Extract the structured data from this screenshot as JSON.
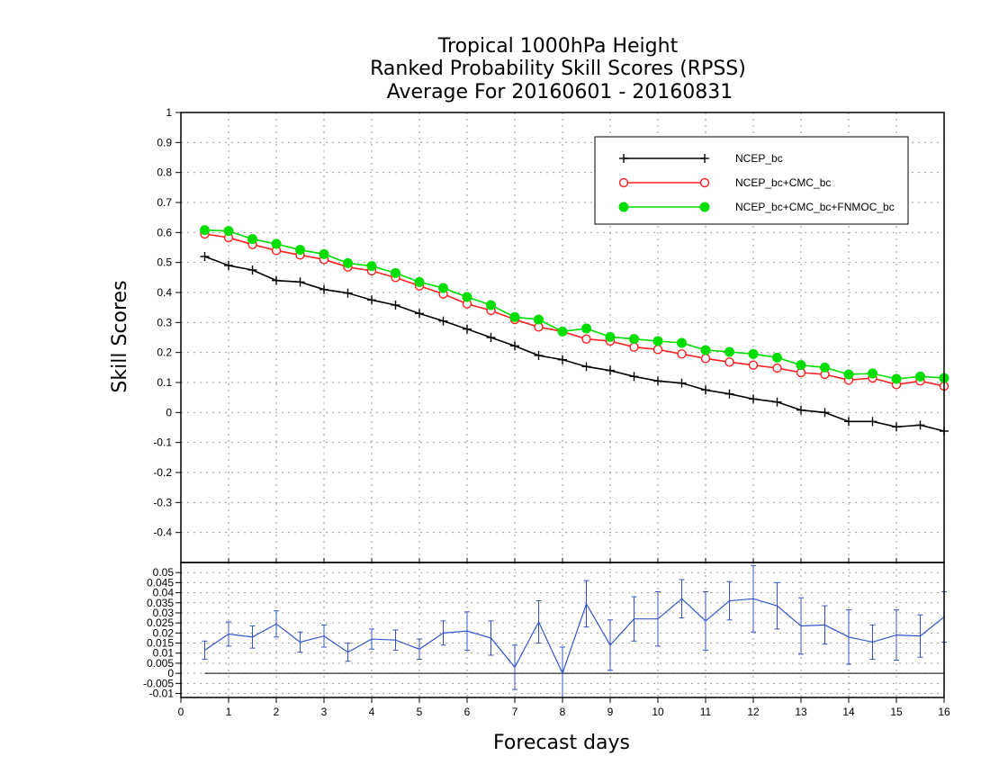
{
  "chart_data": [
    {
      "type": "line",
      "title": [
        "Tropical 1000hPa Height",
        "Ranked Probability Skill Scores (RPSS)",
        "Average For 20160601 - 20160831"
      ],
      "xlabel": "Forecast days",
      "ylabel": "Skill Scores",
      "xlim": [
        0,
        16
      ],
      "ylim": [
        -0.5,
        1
      ],
      "x_ticks": [
        "0",
        "1",
        "2",
        "3",
        "4",
        "5",
        "6",
        "7",
        "8",
        "9",
        "10",
        "11",
        "12",
        "13",
        "14",
        "15",
        "16"
      ],
      "y_ticks": [
        "1",
        "0.9",
        "0.8",
        "0.7",
        "0.6",
        "0.5",
        "0.4",
        "0.3",
        "0.2",
        "0.1",
        "0",
        "-0.1",
        "-0.2",
        "-0.3",
        "-0.4"
      ],
      "grid": true,
      "legend_position": "top-right",
      "x": [
        0.5,
        1,
        1.5,
        2,
        2.5,
        3,
        3.5,
        4,
        4.5,
        5,
        5.5,
        6,
        6.5,
        7,
        7.5,
        8,
        8.5,
        9,
        9.5,
        10,
        10.5,
        11,
        11.5,
        12,
        12.5,
        13,
        13.5,
        14,
        14.5,
        15,
        15.5,
        16
      ],
      "series": [
        {
          "name": "NCEP_bc",
          "color": "#000000",
          "marker": "plus",
          "values": [
            0.52,
            0.49,
            0.475,
            0.44,
            0.435,
            0.41,
            0.398,
            0.375,
            0.358,
            0.33,
            0.305,
            0.278,
            0.25,
            0.222,
            0.19,
            0.176,
            0.153,
            0.14,
            0.12,
            0.105,
            0.098,
            0.075,
            0.062,
            0.045,
            0.035,
            0.008,
            0.0,
            -0.03,
            -0.03,
            -0.048,
            -0.042,
            -0.062
          ]
        },
        {
          "name": "NCEP_bc+CMC_bc",
          "color": "#ff2020",
          "marker": "open-circle",
          "values": [
            0.595,
            0.583,
            0.56,
            0.54,
            0.525,
            0.51,
            0.485,
            0.472,
            0.45,
            0.422,
            0.395,
            0.362,
            0.34,
            0.31,
            0.285,
            0.27,
            0.245,
            0.238,
            0.218,
            0.21,
            0.195,
            0.18,
            0.168,
            0.158,
            0.148,
            0.133,
            0.127,
            0.108,
            0.115,
            0.093,
            0.105,
            0.088
          ]
        },
        {
          "name": "NCEP_bc+CMC_bc+FNMOC_bc",
          "color": "#00dd00",
          "marker": "filled-circle",
          "values": [
            0.608,
            0.605,
            0.578,
            0.562,
            0.542,
            0.528,
            0.498,
            0.488,
            0.465,
            0.435,
            0.415,
            0.385,
            0.358,
            0.318,
            0.31,
            0.27,
            0.28,
            0.252,
            0.245,
            0.238,
            0.232,
            0.208,
            0.202,
            0.195,
            0.183,
            0.158,
            0.15,
            0.127,
            0.13,
            0.112,
            0.12,
            0.115
          ]
        }
      ]
    },
    {
      "type": "line",
      "title": "",
      "xlabel": "",
      "ylabel": "",
      "xlim": [
        0,
        16
      ],
      "ylim": [
        -0.012,
        0.055
      ],
      "y_ticks": [
        "0.05",
        "0.045",
        "0.04",
        "0.035",
        "0.03",
        "0.025",
        "0.02",
        "0.015",
        "0.01",
        "0.005",
        "0",
        "-0.005",
        "-0.01"
      ],
      "reference_line": 0,
      "series": [
        {
          "name": "",
          "color": "#3355cc",
          "error_bars": true,
          "x": [
            0.5,
            1,
            1.5,
            2,
            2.5,
            3,
            3.5,
            4,
            4.5,
            5,
            5.5,
            6,
            6.5,
            7,
            7.5,
            8,
            8.5,
            9,
            9.5,
            10,
            10.5,
            11,
            11.5,
            12,
            12.5,
            13,
            13.5,
            14,
            14.5,
            15,
            15.5,
            16
          ],
          "values": [
            0.0115,
            0.0195,
            0.018,
            0.0245,
            0.0155,
            0.0185,
            0.0105,
            0.017,
            0.0165,
            0.012,
            0.02,
            0.021,
            0.0175,
            0.003,
            0.0255,
            0.0,
            0.0345,
            0.014,
            0.027,
            0.027,
            0.037,
            0.026,
            0.036,
            0.037,
            0.0335,
            0.0235,
            0.024,
            0.018,
            0.0155,
            0.019,
            0.0185,
            0.028
          ],
          "errors": [
            0.0045,
            0.006,
            0.0055,
            0.0065,
            0.005,
            0.0055,
            0.0045,
            0.005,
            0.005,
            0.005,
            0.006,
            0.0095,
            0.0085,
            0.011,
            0.0105,
            0.013,
            0.0115,
            0.0125,
            0.011,
            0.0135,
            0.0095,
            0.0145,
            0.0095,
            0.0165,
            0.0115,
            0.014,
            0.0095,
            0.0135,
            0.0085,
            0.0125,
            0.0105,
            0.0125
          ]
        }
      ]
    }
  ]
}
